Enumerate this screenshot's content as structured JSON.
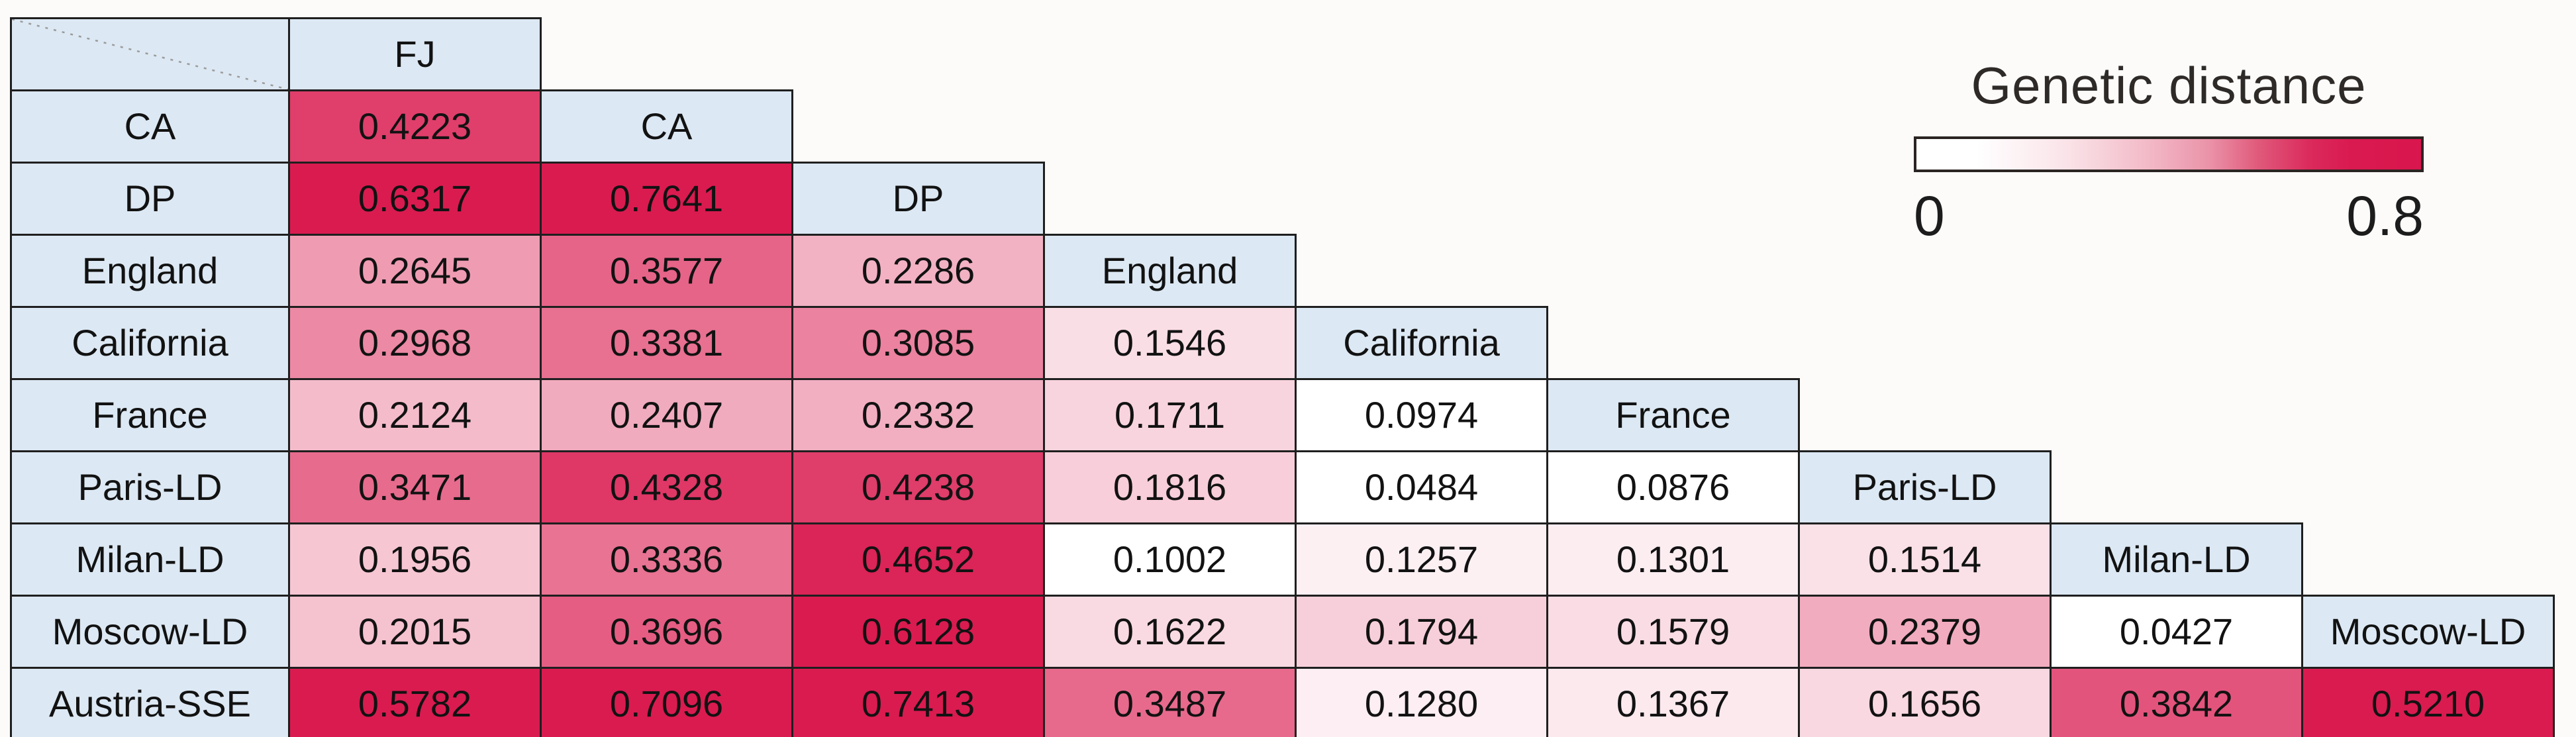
{
  "chart_data": {
    "type": "heatmap",
    "title": "Genetic distance",
    "legend_title": "Genetic distance",
    "colorbar": {
      "min": 0,
      "max": 0.8,
      "min_label": "0",
      "max_label": "0.8",
      "min_color": "#FFFFFF",
      "max_color": "#DA1B50"
    },
    "layout": "lower-triangular matrix with diagonal header cells",
    "columns": [
      "FJ",
      "CA",
      "DP",
      "England",
      "California",
      "France",
      "Paris-LD",
      "Milan-LD",
      "Moscow-LD"
    ],
    "rows": [
      "CA",
      "DP",
      "England",
      "California",
      "France",
      "Paris-LD",
      "Milan-LD",
      "Moscow-LD",
      "Austria-SSE"
    ],
    "values": [
      [
        "0.4223"
      ],
      [
        "0.6317",
        "0.7641"
      ],
      [
        "0.2645",
        "0.3577",
        "0.2286"
      ],
      [
        "0.2968",
        "0.3381",
        "0.3085",
        "0.1546"
      ],
      [
        "0.2124",
        "0.2407",
        "0.2332",
        "0.1711",
        "0.0974"
      ],
      [
        "0.3471",
        "0.4328",
        "0.4238",
        "0.1816",
        "0.0484",
        "0.0876"
      ],
      [
        "0.1956",
        "0.3336",
        "0.4652",
        "0.1002",
        "0.1257",
        "0.1301",
        "0.1514"
      ],
      [
        "0.2015",
        "0.3696",
        "0.6128",
        "0.1622",
        "0.1794",
        "0.1579",
        "0.2379",
        "0.0427"
      ],
      [
        "0.5782",
        "0.7096",
        "0.7413",
        "0.3487",
        "0.1280",
        "0.1367",
        "0.1656",
        "0.3842",
        "0.5210"
      ]
    ]
  },
  "colors": {
    "header_cell_fill": "#DCE8F3",
    "scale_min": "#FFFFFF",
    "scale_max": "#DA1B50",
    "cell_border": "#1F1F1F",
    "diagonal_dash": "#9B9B9B"
  }
}
